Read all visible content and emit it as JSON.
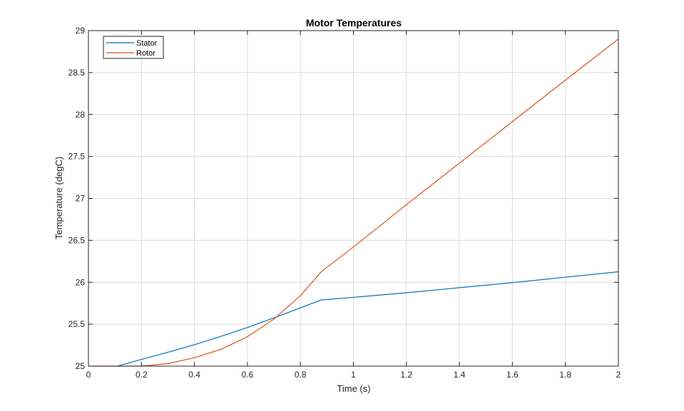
{
  "chart_data": {
    "type": "line",
    "title": "Motor Temperatures",
    "xlabel": "Time (s)",
    "ylabel": "Temperature (degC)",
    "xlim": [
      0,
      2
    ],
    "ylim": [
      25,
      29
    ],
    "xticks": [
      0,
      0.2,
      0.4,
      0.6,
      0.8,
      1,
      1.2,
      1.4,
      1.6,
      1.8,
      2
    ],
    "xtick_labels": [
      "0",
      "0.2",
      "0.4",
      "0.6",
      "0.8",
      "1",
      "1.2",
      "1.4",
      "1.6",
      "1.8",
      "2"
    ],
    "yticks": [
      25,
      25.5,
      26,
      26.5,
      27,
      27.5,
      28,
      28.5,
      29
    ],
    "ytick_labels": [
      "25",
      "25.5",
      "26",
      "26.5",
      "27",
      "27.5",
      "28",
      "28.5",
      "29"
    ],
    "grid": true,
    "legend_position": "top-left",
    "series": [
      {
        "name": "Stator",
        "color": "#0072BD",
        "x": [
          0.11,
          0.2,
          0.3,
          0.4,
          0.5,
          0.6,
          0.7,
          0.8,
          0.88,
          1.0,
          1.2,
          1.4,
          1.6,
          1.8,
          2.0
        ],
        "y": [
          25.0,
          25.08,
          25.165,
          25.255,
          25.355,
          25.46,
          25.575,
          25.695,
          25.79,
          25.82,
          25.875,
          25.935,
          25.995,
          26.06,
          26.125
        ]
      },
      {
        "name": "Rotor",
        "color": "#D95319",
        "x": [
          0.0,
          0.2,
          0.3,
          0.4,
          0.5,
          0.6,
          0.7,
          0.8,
          0.88,
          1.0,
          1.2,
          1.4,
          1.6,
          1.8,
          2.0
        ],
        "y": [
          25.0,
          25.0,
          25.03,
          25.1,
          25.2,
          25.35,
          25.56,
          25.84,
          26.13,
          26.42,
          26.925,
          27.42,
          27.915,
          28.41,
          28.9
        ]
      }
    ]
  }
}
